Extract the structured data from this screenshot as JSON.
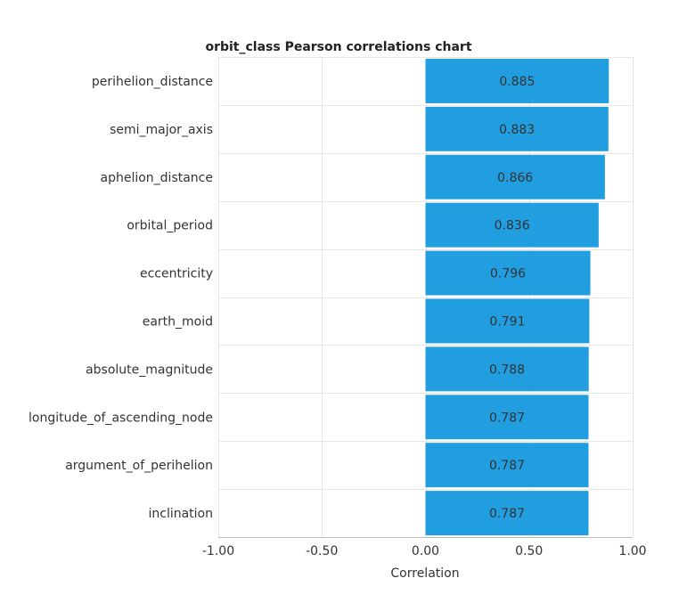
{
  "chart_data": {
    "type": "bar",
    "orientation": "horizontal",
    "title": "orbit_class Pearson correlations chart",
    "xlabel": "Correlation",
    "ylabel": "",
    "xlim": [
      -1.0,
      1.0
    ],
    "x_ticks": [
      "-1.00",
      "-0.50",
      "0.00",
      "0.50",
      "1.00"
    ],
    "x_tick_values": [
      -1.0,
      -0.5,
      0.0,
      0.5,
      1.0
    ],
    "grid": true,
    "legend": "none",
    "bar_color": "#219ee0",
    "categories": [
      "perihelion_distance",
      "semi_major_axis",
      "aphelion_distance",
      "orbital_period",
      "eccentricity",
      "earth_moid",
      "absolute_magnitude",
      "longitude_of_ascending_node",
      "argument_of_perihelion",
      "inclination"
    ],
    "values": [
      0.885,
      0.883,
      0.866,
      0.836,
      0.796,
      0.791,
      0.788,
      0.787,
      0.787,
      0.787
    ],
    "value_labels": [
      "0.885",
      "0.883",
      "0.866",
      "0.836",
      "0.796",
      "0.791",
      "0.788",
      "0.787",
      "0.787",
      "0.787"
    ]
  }
}
